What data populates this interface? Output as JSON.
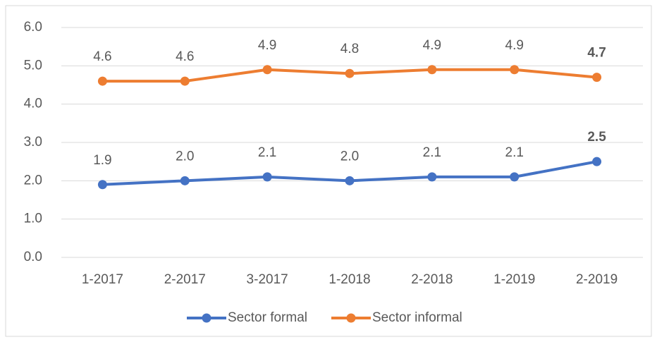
{
  "chart_data": {
    "type": "line",
    "categories": [
      "1-2017",
      "2-2017",
      "3-2017",
      "1-2018",
      "2-2018",
      "1-2019",
      "2-2019"
    ],
    "series": [
      {
        "name": "Sector formal",
        "color": "#4472c4",
        "values": [
          1.9,
          2.0,
          2.1,
          2.0,
          2.1,
          2.1,
          2.5
        ],
        "value_labels": [
          "1.9",
          "2.0",
          "2.1",
          "2.0",
          "2.1",
          "2.1",
          "2.5"
        ]
      },
      {
        "name": "Sector informal",
        "color": "#ed7d31",
        "values": [
          4.6,
          4.6,
          4.9,
          4.8,
          4.9,
          4.9,
          4.7
        ],
        "value_labels": [
          "4.6",
          "4.6",
          "4.9",
          "4.8",
          "4.9",
          "4.9",
          "4.7"
        ]
      }
    ],
    "ylim": [
      0,
      6
    ],
    "yticks": [
      {
        "value": 0,
        "label": "0.0"
      },
      {
        "value": 1,
        "label": "1.0"
      },
      {
        "value": 2,
        "label": "2.0"
      },
      {
        "value": 3,
        "label": "3.0"
      },
      {
        "value": 4,
        "label": "4.0"
      },
      {
        "value": 5,
        "label": "5.0"
      },
      {
        "value": 6,
        "label": "6.0"
      }
    ],
    "grid": true,
    "legend": "bottom"
  }
}
